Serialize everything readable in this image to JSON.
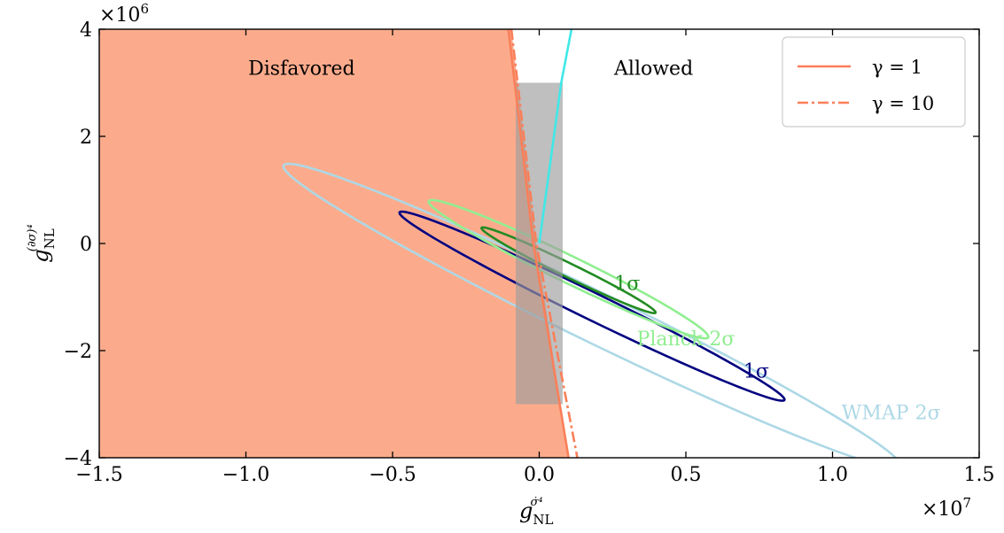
{
  "chart_data": {
    "type": "line",
    "title": "",
    "x_multiplier": "×10^7",
    "y_multiplier": "×10^6",
    "xlim": [
      -1.5,
      1.5
    ],
    "ylim": [
      -4,
      4
    ],
    "xlabel": {
      "base": "g",
      "sub": "NL",
      "sup": "σ̇⁴"
    },
    "ylabel": {
      "base": "g",
      "sub": "NL",
      "sup": "(∂σ)⁴"
    },
    "x_ticks": [
      {
        "value": -1.5,
        "label": "−1.5"
      },
      {
        "value": -1.0,
        "label": "−1.0"
      },
      {
        "value": -0.5,
        "label": "−0.5"
      },
      {
        "value": 0.0,
        "label": "0.0"
      },
      {
        "value": 0.5,
        "label": "0.5"
      },
      {
        "value": 1.0,
        "label": "1.0"
      },
      {
        "value": 1.5,
        "label": "1.5"
      }
    ],
    "y_ticks": [
      {
        "value": -4,
        "label": "−4"
      },
      {
        "value": -2,
        "label": "−2"
      },
      {
        "value": 0,
        "label": "0"
      },
      {
        "value": 2,
        "label": "2"
      },
      {
        "value": 4,
        "label": "4"
      }
    ],
    "grid": false,
    "legend_position": "top-right",
    "legend": [
      {
        "label": "γ = 1",
        "style": "solid",
        "color": "#FA7F59"
      },
      {
        "label": "γ = 10",
        "style": "dashdot",
        "color": "#FA7F59"
      }
    ],
    "region_labels": [
      {
        "text": "Disfavored",
        "x": -0.81,
        "y": 3.15
      },
      {
        "text": "Allowed",
        "x": 0.39,
        "y": 3.15
      }
    ],
    "disfavored_region": {
      "color": "#FBAB8C",
      "boundary": [
        [
          0.1,
          -4.0
        ],
        [
          -0.01,
          0.0
        ],
        [
          -0.095,
          4.0
        ]
      ]
    },
    "series": [
      {
        "label": "γ = 1",
        "style": "solid",
        "color": "#FA7F59",
        "points": [
          [
            -0.105,
            4.0
          ],
          [
            -0.02,
            0.0
          ],
          [
            0.1,
            -4.0
          ]
        ]
      },
      {
        "label": "γ = 10",
        "style": "dashdot",
        "color": "#FA7F59",
        "points": [
          [
            -0.095,
            4.0
          ],
          [
            -0.01,
            0.0
          ],
          [
            0.13,
            -4.0
          ]
        ]
      },
      {
        "color": "#40E8E8",
        "style": "solid",
        "points": [
          [
            0.0,
            0.0
          ],
          [
            0.075,
            3.0
          ],
          [
            0.11,
            4.0
          ]
        ]
      }
    ],
    "gray_band": {
      "color": "#9C9C9C",
      "opacity": 0.65,
      "x": [
        -0.08,
        0.08
      ],
      "y": [
        -3.0,
        3.0
      ]
    },
    "ellipses": [
      {
        "name": "WMAP 2σ",
        "color": "#ADD8E6",
        "cx": 0.18,
        "cy": -1.35,
        "rx": 1.17,
        "ry": 0.47,
        "tilt_deg": -26
      },
      {
        "name": "1σ",
        "color": "#000080",
        "cx": 0.18,
        "cy": -1.17,
        "rx": 0.73,
        "ry": 0.25,
        "tilt_deg": -26
      },
      {
        "name": "Planck 2σ",
        "color": "#90EE90",
        "cx": 0.1,
        "cy": -0.48,
        "rx": 0.53,
        "ry": 0.25,
        "tilt_deg": -26
      },
      {
        "name": "1σ",
        "color": "#228B22",
        "cx": 0.1,
        "cy": -0.5,
        "rx": 0.33,
        "ry": 0.13,
        "tilt_deg": -26
      }
    ],
    "annotations": [
      {
        "text": "1σ",
        "color": "#228B22",
        "x": 0.3,
        "y": -0.87
      },
      {
        "text": "Planck 2σ",
        "color": "#90EE90",
        "x": 0.5,
        "y": -1.9
      },
      {
        "text": "1σ",
        "color": "#000080",
        "x": 0.74,
        "y": -2.5
      },
      {
        "text": "WMAP 2σ",
        "color": "#ADD8E6",
        "x": 1.2,
        "y": -3.28
      }
    ]
  }
}
